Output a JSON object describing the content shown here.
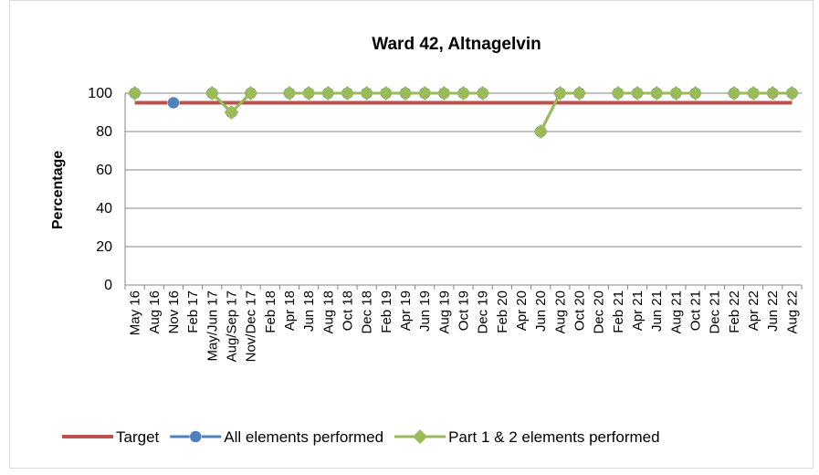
{
  "chart_data": {
    "type": "line",
    "title": "Ward 42, Altnagelvin",
    "y_label": "Percentage",
    "categories": [
      "May 16",
      "Aug 16",
      "Nov 16",
      "Feb 17",
      "May/Jun 17",
      "Aug/Sep 17",
      "Nov/Dec 17",
      "Feb 18",
      "Apr 18",
      "Jun 18",
      "Aug 18",
      "Oct 18",
      "Dec 18",
      "Feb 19",
      "Apr 19",
      "Jun 19",
      "Aug 19",
      "Oct 19",
      "Dec 19",
      "Feb 20",
      "Apr 20",
      "Jun 20",
      "Aug 20",
      "Oct 20",
      "Dec 20",
      "Feb 21",
      "Apr 21",
      "Jun 21",
      "Aug 21",
      "Oct 21",
      "Dec 21",
      "Feb 22",
      "Apr 22",
      "Jun 22",
      "Aug 22"
    ],
    "series": [
      {
        "name": "Target",
        "color": "#c0504d",
        "marker": "none",
        "values": [
          95,
          95,
          95,
          95,
          95,
          95,
          95,
          95,
          95,
          95,
          95,
          95,
          95,
          95,
          95,
          95,
          95,
          95,
          95,
          95,
          95,
          95,
          95,
          95,
          95,
          95,
          95,
          95,
          95,
          95,
          95,
          95,
          95,
          95,
          95
        ]
      },
      {
        "name": "All elements performed",
        "color": "#4f81bd",
        "marker": "circle",
        "values": [
          100,
          null,
          95,
          null,
          100,
          90,
          100,
          null,
          100,
          100,
          100,
          100,
          100,
          100,
          100,
          100,
          100,
          100,
          100,
          null,
          null,
          80,
          100,
          100,
          null,
          100,
          100,
          100,
          100,
          100,
          null,
          100,
          100,
          100,
          100
        ]
      },
      {
        "name": "Part 1 & 2 elements performed",
        "color": "#9bbb59",
        "marker": "diamond",
        "values": [
          100,
          null,
          null,
          null,
          100,
          90,
          100,
          null,
          100,
          100,
          100,
          100,
          100,
          100,
          100,
          100,
          100,
          100,
          100,
          null,
          null,
          80,
          100,
          100,
          null,
          100,
          100,
          100,
          100,
          100,
          null,
          100,
          100,
          100,
          100
        ]
      }
    ],
    "ylim": [
      0,
      100
    ],
    "yticks": [
      0,
      20,
      40,
      60,
      80,
      100
    ],
    "grid": true,
    "legend": "bottom"
  }
}
